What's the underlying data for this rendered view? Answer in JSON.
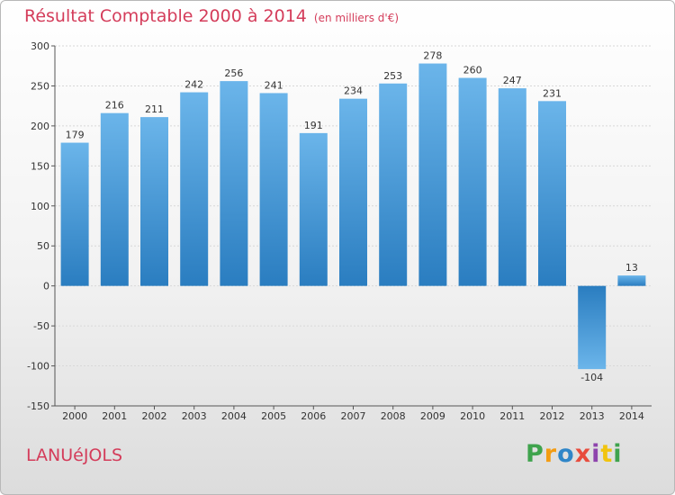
{
  "title": "Résultat Comptable 2000 à 2014",
  "unit": "(en milliers d'€)",
  "city": "LANUéJOLS",
  "logo": {
    "letters": [
      "P",
      "r",
      "o",
      "x",
      "i",
      "t",
      "i"
    ],
    "colors": [
      "#3fa34d",
      "#f39c12",
      "#2f86c8",
      "#e84c3d",
      "#8e44ad",
      "#f1c40f",
      "#3fa34d"
    ]
  },
  "colors": {
    "bar_top": "#6bb5ea",
    "bar_bottom": "#2a7dc0",
    "title": "#d43c5a"
  },
  "chart_data": {
    "type": "bar",
    "title": "Résultat Comptable 2000 à 2014",
    "ylabel": "(en milliers d'€)",
    "xlabel": "",
    "categories": [
      "2000",
      "2001",
      "2002",
      "2003",
      "2004",
      "2005",
      "2006",
      "2007",
      "2008",
      "2009",
      "2010",
      "2011",
      "2012",
      "2013",
      "2014"
    ],
    "values": [
      179,
      216,
      211,
      242,
      256,
      241,
      191,
      234,
      253,
      278,
      260,
      247,
      231,
      -104,
      13
    ],
    "ylim": [
      -150,
      300
    ],
    "yticks": [
      300,
      250,
      200,
      150,
      100,
      50,
      0,
      -50,
      -100,
      -150
    ],
    "grid": true
  }
}
